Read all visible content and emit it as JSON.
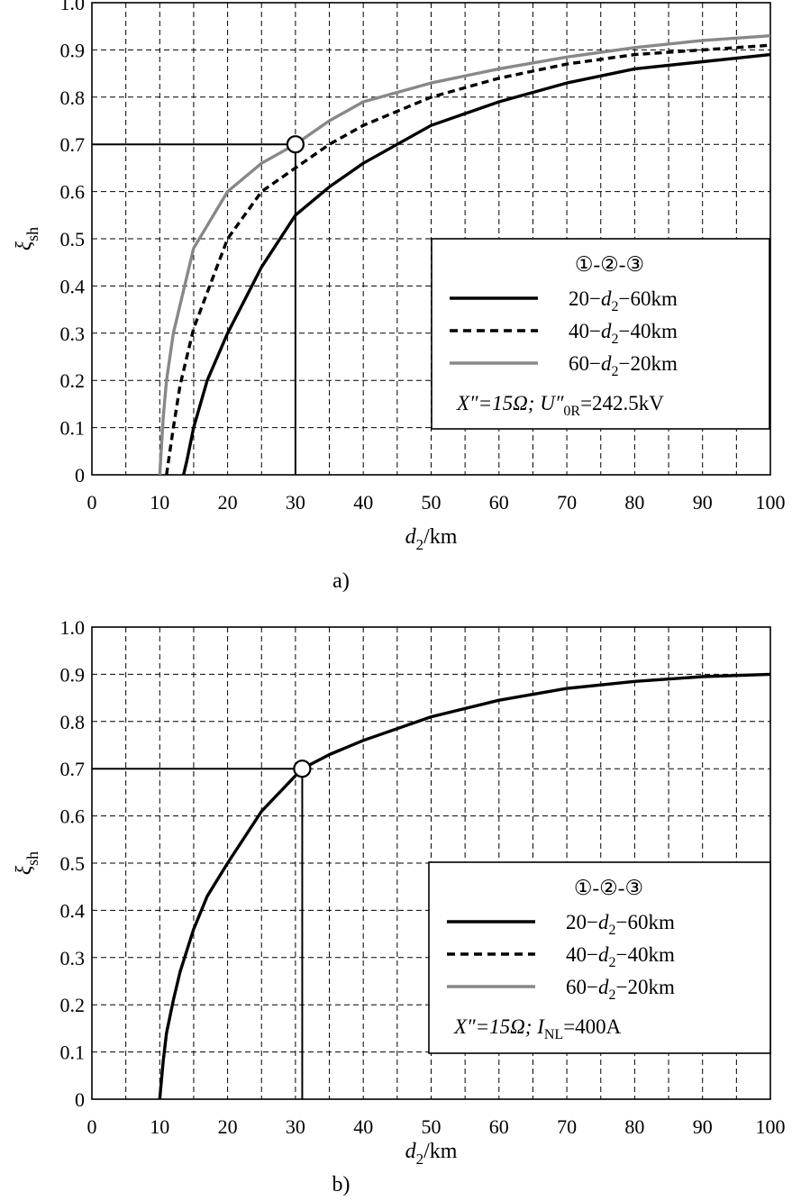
{
  "chart_data": [
    {
      "type": "line",
      "caption": "a)",
      "xlabel": "d2/km",
      "xlabel_parts": [
        "d",
        "2",
        "/km"
      ],
      "ylabel_parts": [
        "ξ",
        "sh"
      ],
      "xlim": [
        0,
        100
      ],
      "ylim": [
        0,
        1.0
      ],
      "xticks": [
        "0",
        "10",
        "20",
        "30",
        "40",
        "50",
        "60",
        "70",
        "80",
        "90",
        "100"
      ],
      "yticks": [
        "0",
        "0.1",
        "0.2",
        "0.3",
        "0.4",
        "0.5",
        "0.6",
        "0.7",
        "0.8",
        "0.9",
        "1.0"
      ],
      "grid": true,
      "legend": {
        "position": "lower-right",
        "title": "①-②-③",
        "entries": [
          {
            "pre": "20−",
            "var": "d",
            "sub": "2",
            "post": "−60km",
            "color": "#000000",
            "dash": "solid"
          },
          {
            "pre": "40−",
            "var": "d",
            "sub": "2",
            "post": "−40km",
            "color": "#000000",
            "dash": "dashed"
          },
          {
            "pre": "60−",
            "var": "d",
            "sub": "2",
            "post": "−20km",
            "color": "#888888",
            "dash": "solid"
          }
        ],
        "note_parts": [
          "X″=15Ω;  ",
          "U″",
          "0R",
          "=242.5kV"
        ]
      },
      "marker": {
        "x": 30,
        "y": 0.7
      },
      "series": [
        {
          "color": "#000000",
          "dash": "solid",
          "x": [
            13.5,
            14,
            15,
            17,
            20,
            25,
            30,
            35,
            40,
            50,
            60,
            70,
            80,
            90,
            100
          ],
          "y": [
            0,
            0.03,
            0.1,
            0.2,
            0.3,
            0.44,
            0.55,
            0.61,
            0.66,
            0.74,
            0.79,
            0.83,
            0.86,
            0.875,
            0.89
          ]
        },
        {
          "color": "#000000",
          "dash": "dashed",
          "x": [
            11,
            12,
            13,
            15,
            20,
            25,
            30,
            35,
            40,
            50,
            60,
            70,
            80,
            90,
            100
          ],
          "y": [
            0,
            0.1,
            0.19,
            0.31,
            0.5,
            0.6,
            0.65,
            0.7,
            0.74,
            0.8,
            0.84,
            0.87,
            0.89,
            0.9,
            0.91
          ]
        },
        {
          "color": "#888888",
          "dash": "solid",
          "x": [
            10,
            10.5,
            11,
            12,
            15,
            20,
            25,
            30,
            35,
            40,
            50,
            60,
            70,
            80,
            90,
            100
          ],
          "y": [
            0,
            0.12,
            0.2,
            0.3,
            0.48,
            0.6,
            0.66,
            0.7,
            0.75,
            0.79,
            0.83,
            0.86,
            0.885,
            0.905,
            0.92,
            0.93
          ]
        }
      ]
    },
    {
      "type": "line",
      "caption": "b)",
      "xlabel": "d2/km",
      "xlabel_parts": [
        "d",
        "2",
        "/km"
      ],
      "ylabel_parts": [
        "ξ",
        "sh"
      ],
      "xlim": [
        0,
        100
      ],
      "ylim": [
        0,
        1.0
      ],
      "xticks": [
        "0",
        "10",
        "20",
        "30",
        "40",
        "50",
        "60",
        "70",
        "80",
        "90",
        "100"
      ],
      "yticks": [
        "0",
        "0.1",
        "0.2",
        "0.3",
        "0.4",
        "0.5",
        "0.6",
        "0.7",
        "0.8",
        "0.9",
        "1.0"
      ],
      "grid": true,
      "legend": {
        "position": "lower-right",
        "title": "①-②-③",
        "entries": [
          {
            "pre": "20−",
            "var": "d",
            "sub": "2",
            "post": "−60km",
            "color": "#000000",
            "dash": "solid"
          },
          {
            "pre": "40−",
            "var": "d",
            "sub": "2",
            "post": "−40km",
            "color": "#000000",
            "dash": "dashed"
          },
          {
            "pre": "60−",
            "var": "d",
            "sub": "2",
            "post": "−20km",
            "color": "#888888",
            "dash": "solid"
          }
        ],
        "note_parts": [
          "X″=15Ω; ",
          "I",
          "NL",
          "=400A"
        ]
      },
      "marker": {
        "x": 31,
        "y": 0.7
      },
      "series": [
        {
          "color": "#000000",
          "dash": "solid",
          "x": [
            10,
            10.5,
            11,
            12,
            13,
            15,
            17,
            20,
            25,
            31,
            35,
            40,
            50,
            60,
            70,
            80,
            90,
            100
          ],
          "y": [
            0,
            0.08,
            0.14,
            0.21,
            0.27,
            0.36,
            0.43,
            0.5,
            0.61,
            0.7,
            0.73,
            0.76,
            0.81,
            0.845,
            0.87,
            0.885,
            0.895,
            0.9
          ]
        }
      ]
    }
  ]
}
